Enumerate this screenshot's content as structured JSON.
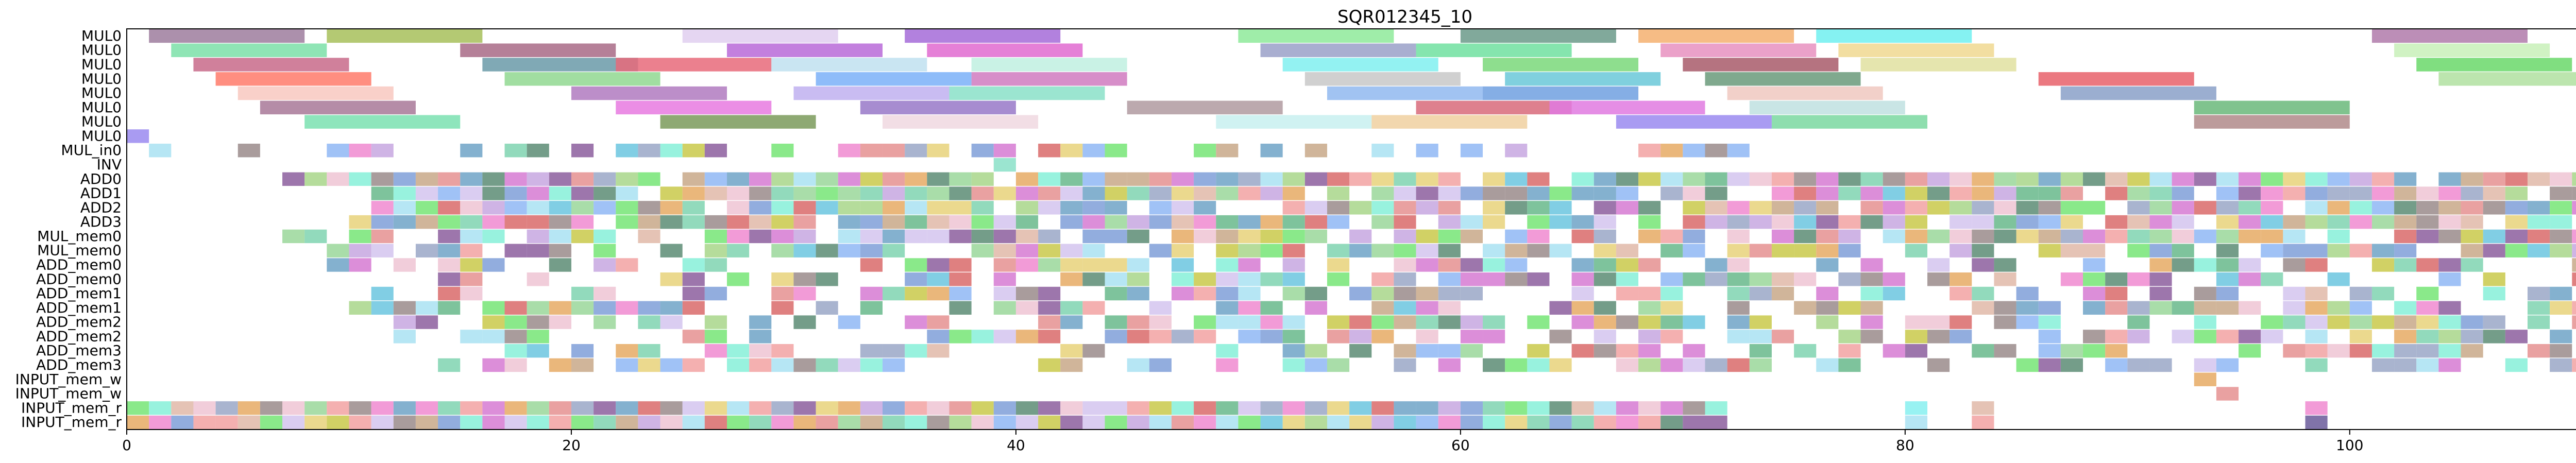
{
  "chart_data": {
    "type": "gantt",
    "title": "SQR012345_10",
    "xlim": [
      0,
      115
    ],
    "xticks": [
      0,
      20,
      40,
      60,
      80,
      100
    ],
    "rows": [
      "MUL0",
      "MUL0",
      "MUL0",
      "MUL0",
      "MUL0",
      "MUL0",
      "MUL0",
      "MUL0",
      "MUL_in0",
      "INV",
      "ADD0",
      "ADD1",
      "ADD2",
      "ADD3",
      "MUL_mem0",
      "MUL_mem0",
      "ADD_mem0",
      "ADD_mem0",
      "ADD_mem1",
      "ADD_mem1",
      "ADD_mem2",
      "ADD_mem2",
      "ADD_mem3",
      "ADD_mem3",
      "INPUT_mem_w",
      "INPUT_mem_w",
      "INPUT_mem_r",
      "INPUT_mem_r"
    ],
    "palette": [
      "#7f9fd8",
      "#e0b8a8",
      "#9ad79a",
      "#d67ad2",
      "#6bc6df",
      "#c7a7e0",
      "#e6aa64",
      "#7fd4b0",
      "#d96a6a",
      "#a8d68a",
      "#9aa7c7",
      "#e7d27a",
      "#8c5e9e",
      "#6fa3c7",
      "#c8a888",
      "#76e576",
      "#f08ad0",
      "#a9e2f2",
      "#d4c4ee",
      "#e59090",
      "#67b98b",
      "#c9c94a",
      "#8fb7f5",
      "#eec4d4",
      "#9a8b8b",
      "#5c8c74",
      "#f2a2a2",
      "#86f0d8"
    ],
    "mul_bars": [
      {
        "row": 0,
        "start": 1,
        "end": 8,
        "c": "#9e7c9e"
      },
      {
        "row": 0,
        "start": 9,
        "end": 16,
        "c": "#a7c05a"
      },
      {
        "row": 0,
        "start": 25,
        "end": 32,
        "c": "#e0cff0"
      },
      {
        "row": 0,
        "start": 35,
        "end": 42,
        "c": "#a56bd8"
      },
      {
        "row": 0,
        "start": 50,
        "end": 57,
        "c": "#8eea9a"
      },
      {
        "row": 0,
        "start": 60,
        "end": 67,
        "c": "#6b9a8a"
      },
      {
        "row": 0,
        "start": 68,
        "end": 75,
        "c": "#f5b070"
      },
      {
        "row": 0,
        "start": 76,
        "end": 83,
        "c": "#70f0f0"
      },
      {
        "row": 0,
        "start": 101,
        "end": 108,
        "c": "#b07aaa"
      },
      {
        "row": 1,
        "start": 2,
        "end": 9,
        "c": "#7be0a8"
      },
      {
        "row": 1,
        "start": 15,
        "end": 22,
        "c": "#a86a86"
      },
      {
        "row": 1,
        "start": 27,
        "end": 34,
        "c": "#b86ad8"
      },
      {
        "row": 1,
        "start": 36,
        "end": 43,
        "c": "#e06ad0"
      },
      {
        "row": 1,
        "start": 51,
        "end": 58,
        "c": "#9aa0c8"
      },
      {
        "row": 1,
        "start": 58,
        "end": 65,
        "c": "#70e0a0"
      },
      {
        "row": 1,
        "start": 69,
        "end": 76,
        "c": "#e890c0"
      },
      {
        "row": 1,
        "start": 77,
        "end": 84,
        "c": "#f0d890"
      },
      {
        "row": 1,
        "start": 102,
        "end": 109,
        "c": "#c8f0b8"
      },
      {
        "row": 2,
        "start": 3,
        "end": 10,
        "c": "#c86a8a"
      },
      {
        "row": 2,
        "start": 16,
        "end": 23,
        "c": "#6a9aa8"
      },
      {
        "row": 2,
        "start": 22,
        "end": 29,
        "c": "#e86a7a"
      },
      {
        "row": 2,
        "start": 29,
        "end": 36,
        "c": "#c0e0f0"
      },
      {
        "row": 2,
        "start": 38,
        "end": 45,
        "c": "#c0f0e0"
      },
      {
        "row": 2,
        "start": 52,
        "end": 59,
        "c": "#80f0f0"
      },
      {
        "row": 2,
        "start": 61,
        "end": 68,
        "c": "#7ad87a"
      },
      {
        "row": 2,
        "start": 70,
        "end": 77,
        "c": "#a85a6a"
      },
      {
        "row": 2,
        "start": 78,
        "end": 85,
        "c": "#e0e0a0"
      },
      {
        "row": 2,
        "start": 103,
        "end": 110,
        "c": "#6ad86a"
      },
      {
        "row": 3,
        "start": 4,
        "end": 11,
        "c": "#ff7a6a"
      },
      {
        "row": 3,
        "start": 17,
        "end": 24,
        "c": "#90d890"
      },
      {
        "row": 3,
        "start": 31,
        "end": 38,
        "c": "#7ab0f8"
      },
      {
        "row": 3,
        "start": 38,
        "end": 45,
        "c": "#d07ac0"
      },
      {
        "row": 3,
        "start": 53,
        "end": 60,
        "c": "#c8c8c8"
      },
      {
        "row": 3,
        "start": 62,
        "end": 69,
        "c": "#6ac8d8"
      },
      {
        "row": 3,
        "start": 71,
        "end": 78,
        "c": "#6a9a7a"
      },
      {
        "row": 3,
        "start": 86,
        "end": 93,
        "c": "#e8606a"
      },
      {
        "row": 3,
        "start": 104,
        "end": 111,
        "c": "#b0e0a0"
      },
      {
        "row": 4,
        "start": 5,
        "end": 12,
        "c": "#f8c8c0"
      },
      {
        "row": 4,
        "start": 20,
        "end": 27,
        "c": "#b07ac0"
      },
      {
        "row": 4,
        "start": 30,
        "end": 37,
        "c": "#c0b0f0"
      },
      {
        "row": 4,
        "start": 37,
        "end": 44,
        "c": "#8ae0c8"
      },
      {
        "row": 4,
        "start": 54,
        "end": 61,
        "c": "#90b8f0"
      },
      {
        "row": 4,
        "start": 61,
        "end": 68,
        "c": "#70a0e0"
      },
      {
        "row": 4,
        "start": 72,
        "end": 79,
        "c": "#f0c8c0"
      },
      {
        "row": 4,
        "start": 87,
        "end": 94,
        "c": "#8aa0c8"
      },
      {
        "row": 5,
        "start": 6,
        "end": 13,
        "c": "#a87898"
      },
      {
        "row": 5,
        "start": 22,
        "end": 29,
        "c": "#e87ae0"
      },
      {
        "row": 5,
        "start": 33,
        "end": 40,
        "c": "#9878c8"
      },
      {
        "row": 5,
        "start": 45,
        "end": 52,
        "c": "#b09aa0"
      },
      {
        "row": 5,
        "start": 58,
        "end": 65,
        "c": "#d86a7a"
      },
      {
        "row": 5,
        "start": 64,
        "end": 71,
        "c": "#e07ae0"
      },
      {
        "row": 5,
        "start": 73,
        "end": 80,
        "c": "#c0e0e0"
      },
      {
        "row": 5,
        "start": 93,
        "end": 100,
        "c": "#6ab87a"
      },
      {
        "row": 6,
        "start": 8,
        "end": 15,
        "c": "#7ae0b0"
      },
      {
        "row": 6,
        "start": 24,
        "end": 31,
        "c": "#7a9a5a"
      },
      {
        "row": 6,
        "start": 34,
        "end": 41,
        "c": "#f0d8e0"
      },
      {
        "row": 6,
        "start": 49,
        "end": 56,
        "c": "#c8f0f0"
      },
      {
        "row": 6,
        "start": 56,
        "end": 63,
        "c": "#f0d0a0"
      },
      {
        "row": 6,
        "start": 67,
        "end": 74,
        "c": "#9a8af0"
      },
      {
        "row": 6,
        "start": 74,
        "end": 81,
        "c": "#7ad8a0"
      },
      {
        "row": 6,
        "start": 93,
        "end": 100,
        "c": "#b08a8a"
      }
    ]
  }
}
